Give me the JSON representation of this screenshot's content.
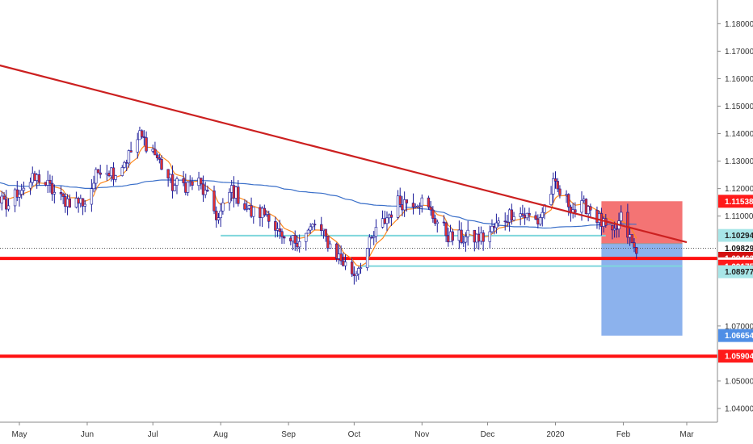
{
  "chart_data": {
    "type": "candlestick",
    "title": "",
    "xlabel": "",
    "ylabel": "",
    "ylim": [
      1.035,
      1.1895
    ],
    "grid": false,
    "x_ticks": [
      "May",
      "Jun",
      "Jul",
      "Aug",
      "Sep",
      "Oct",
      "Nov",
      "Dec",
      "2020",
      "Feb",
      "Mar"
    ],
    "y_ticks": [
      "1.18000",
      "1.17000",
      "1.16000",
      "1.15000",
      "1.14000",
      "1.13000",
      "1.12000",
      "1.11000",
      "1.07000",
      "1.05000",
      "1.04000"
    ],
    "price_labels": [
      {
        "text": "1.11538",
        "value": 1.11538,
        "color": "#ff1a1a",
        "text_color": "#ffffff"
      },
      {
        "text": "1.10294",
        "value": 1.10294,
        "color": "#a8e6e8",
        "text_color": "#222222"
      },
      {
        "text": "1.09829",
        "value": 1.09829,
        "color": "#ffffff",
        "text_color": "#111111"
      },
      {
        "text": "1.09463",
        "value": 1.09463,
        "color": "#d41010",
        "text_color": "#ffffff"
      },
      {
        "text": "1.09262",
        "value": 1.09262,
        "color": "#ffffff",
        "text_color": "#111111"
      },
      {
        "text": "1.09175",
        "value": 1.09175,
        "color": "#ff1a1a",
        "text_color": "#ffffff"
      },
      {
        "text": "1.08977",
        "value": 1.08977,
        "color": "#a8e6e8",
        "text_color": "#222222"
      },
      {
        "text": "1.06654",
        "value": 1.06654,
        "color": "#4f8ee6",
        "text_color": "#ffffff"
      },
      {
        "text": "1.05904",
        "value": 1.05904,
        "color": "#ff1a1a",
        "text_color": "#ffffff"
      }
    ],
    "horizontal_lines": [
      {
        "value": 1.0946,
        "color": "#ff1010",
        "width": 4
      },
      {
        "value": 1.059,
        "color": "#ff1010",
        "width": 4
      }
    ],
    "trendline": {
      "from": [
        "2019-03-20",
        1.1716
      ],
      "to": [
        "2020-03-01",
        1.1005
      ],
      "color": "#cc2020"
    },
    "cyan_lines": [
      {
        "from": "2019-08-01",
        "to": "2020-01-24",
        "value": 1.1029
      },
      {
        "from": "2019-10-03",
        "to": "2020-02-28",
        "value": 1.0918
      }
    ],
    "position_box": {
      "from": "2020-01-22",
      "to": "2020-02-28",
      "stop": 1.1154,
      "entry": 1.1,
      "target": 1.0665
    },
    "current_price": 1.0983,
    "series_colors": {
      "bull": "#ffffff",
      "bear": "#e03030",
      "wick": "#1a1a99",
      "ema_short": "#ff8a1f",
      "sma_long": "#3a6fc9"
    },
    "price_path": [
      [
        "2019-03-18",
        1.126
      ],
      [
        "2019-04-01",
        1.118
      ],
      [
        "2019-04-10",
        1.126
      ],
      [
        "2019-04-25",
        1.113
      ],
      [
        "2019-05-01",
        1.12
      ],
      [
        "2019-05-10",
        1.124
      ],
      [
        "2019-05-20",
        1.116
      ],
      [
        "2019-05-31",
        1.115
      ],
      [
        "2019-06-07",
        1.128
      ],
      [
        "2019-06-14",
        1.126
      ],
      [
        "2019-06-20",
        1.132
      ],
      [
        "2019-06-25",
        1.139
      ],
      [
        "2019-07-01",
        1.134
      ],
      [
        "2019-07-10",
        1.121
      ],
      [
        "2019-07-22",
        1.122
      ],
      [
        "2019-07-31",
        1.109
      ],
      [
        "2019-08-06",
        1.12
      ],
      [
        "2019-08-15",
        1.111
      ],
      [
        "2019-08-23",
        1.111
      ],
      [
        "2019-08-30",
        1.099
      ],
      [
        "2019-09-10",
        1.104
      ],
      [
        "2019-09-13",
        1.107
      ],
      [
        "2019-09-26",
        1.093
      ],
      [
        "2019-10-01",
        1.089
      ],
      [
        "2019-10-11",
        1.104
      ],
      [
        "2019-10-21",
        1.115
      ],
      [
        "2019-10-31",
        1.116
      ],
      [
        "2019-11-14",
        1.102
      ],
      [
        "2019-11-29",
        1.102
      ],
      [
        "2019-12-10",
        1.11
      ],
      [
        "2019-12-13",
        1.112
      ],
      [
        "2019-12-24",
        1.108
      ],
      [
        "2019-12-31",
        1.121
      ],
      [
        "2020-01-10",
        1.112
      ],
      [
        "2020-01-16",
        1.114
      ],
      [
        "2020-01-27",
        1.102
      ],
      [
        "2020-01-31",
        1.109
      ],
      [
        "2020-02-07",
        1.096
      ]
    ]
  }
}
